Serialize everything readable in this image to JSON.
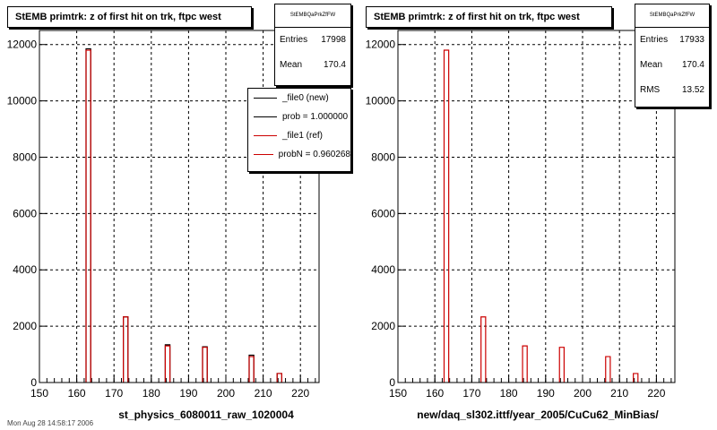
{
  "colors": {
    "new": "#000000",
    "ref": "#cc0000"
  },
  "footer_text": "Mon Aug 28 14:58:17 2006",
  "chart_data": [
    {
      "type": "bar",
      "title": "StEMB primtrk: z of first hit on trk, ftpc west",
      "xlabel": "st_physics_6080011_raw_1020004",
      "ylabel": "",
      "xlim": [
        150,
        225
      ],
      "ylim": [
        0,
        12500
      ],
      "x_ticks": [
        150,
        160,
        170,
        180,
        190,
        200,
        210,
        220
      ],
      "y_ticks": [
        0,
        2000,
        4000,
        6000,
        8000,
        10000,
        12000
      ],
      "grid": true,
      "bin_width": 1.25,
      "stats": {
        "name": "StEMBQaPrkZfFW",
        "rows": [
          {
            "label": "Entries",
            "value": "17998"
          },
          {
            "label": "Mean",
            "value": "170.4"
          }
        ]
      },
      "legend": {
        "position": "top-right",
        "entries": [
          {
            "label": "_file0 (new)",
            "color": "#000000"
          },
          {
            "label": "prob = 1.000000",
            "color": "#000000"
          },
          {
            "label": "_file1 (ref)",
            "color": "#cc0000"
          },
          {
            "label": "probN = 0.960268",
            "color": "#cc0000"
          }
        ]
      },
      "series": [
        {
          "name": "_file0 (new)",
          "x": [
            162.5,
            172.5,
            183.75,
            193.75,
            206.25,
            213.75
          ],
          "values": [
            11850,
            2330,
            1340,
            1270,
            970,
            320
          ]
        },
        {
          "name": "_file1 (ref)",
          "x": [
            162.5,
            172.5,
            183.75,
            193.75,
            206.25,
            213.75
          ],
          "values": [
            11800,
            2330,
            1300,
            1250,
            920,
            320
          ]
        }
      ]
    },
    {
      "type": "bar",
      "title": "StEMB primtrk: z of first hit on trk, ftpc west",
      "xlabel": "new/daq_sl302.ittf/year_2005/CuCu62_MinBias/",
      "ylabel": "",
      "xlim": [
        150,
        225
      ],
      "ylim": [
        0,
        12500
      ],
      "x_ticks": [
        150,
        160,
        170,
        180,
        190,
        200,
        210,
        220
      ],
      "y_ticks": [
        0,
        2000,
        4000,
        6000,
        8000,
        10000,
        12000
      ],
      "grid": true,
      "bin_width": 1.25,
      "stats": {
        "name": "StEMBQaPrkZfFW",
        "rows": [
          {
            "label": "Entries",
            "value": "17933"
          },
          {
            "label": "Mean",
            "value": "170.4"
          },
          {
            "label": "RMS",
            "value": "13.52"
          }
        ]
      },
      "series": [
        {
          "name": "_file1 (ref)",
          "x": [
            162.5,
            172.5,
            183.75,
            193.75,
            206.25,
            213.75
          ],
          "values": [
            11800,
            2330,
            1300,
            1250,
            920,
            320
          ]
        }
      ]
    }
  ]
}
